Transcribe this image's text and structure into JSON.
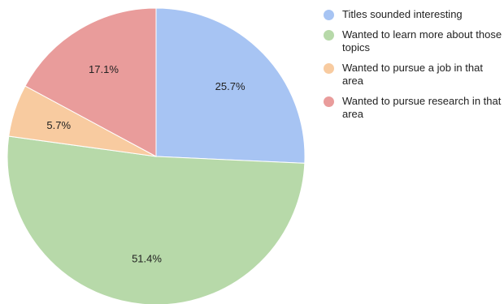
{
  "chart_data": {
    "type": "pie",
    "title": "",
    "legend_position": "right",
    "slices": [
      {
        "label": "Titles sounded interesting",
        "value": 25.7,
        "value_label": "25.7%",
        "color": "#a7c4f3"
      },
      {
        "label": "Wanted to learn more about those topics",
        "value": 51.4,
        "value_label": "51.4%",
        "color": "#b7d9a9"
      },
      {
        "label": "Wanted to pursue a job in that area",
        "value": 5.7,
        "value_label": "5.7%",
        "color": "#f8cba0"
      },
      {
        "label": "Wanted to pursue research in that area",
        "value": 17.1,
        "value_label": "17.1%",
        "color": "#e99c9b"
      }
    ]
  }
}
